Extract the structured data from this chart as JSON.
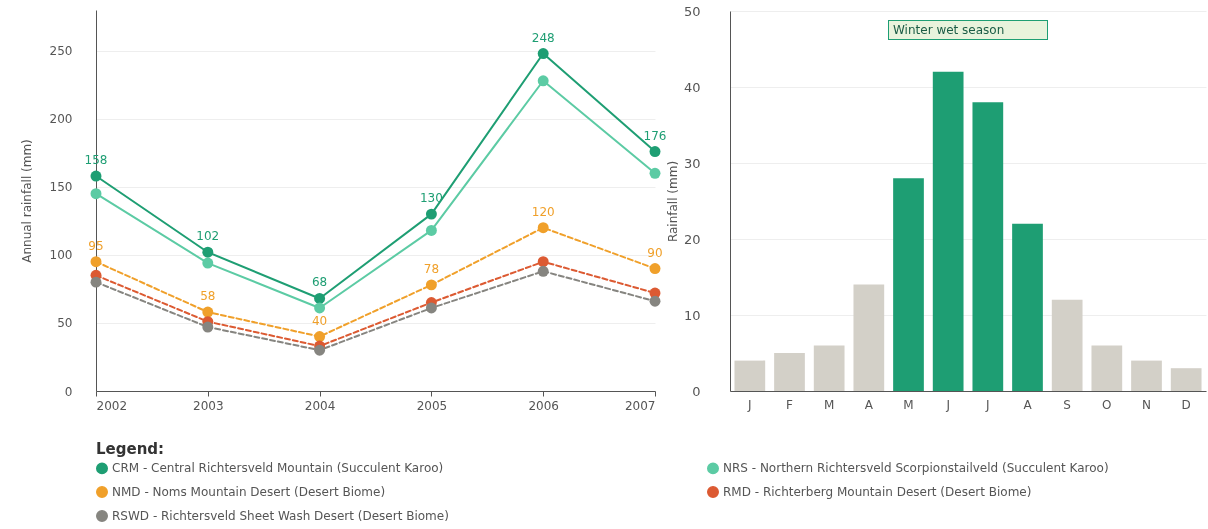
{
  "chart_data": [
    {
      "type": "line",
      "xlabel": null,
      "ylabel": "Annual rainfall (mm)",
      "legend_title": "Legend:",
      "x": [
        2002,
        2003,
        2004,
        2005,
        2006,
        2007
      ],
      "xlim": [
        2002,
        2007
      ],
      "xticks": [
        2002,
        2003,
        2004,
        2005,
        2006,
        2007
      ],
      "ylim": [
        0,
        280
      ],
      "yticks": [
        0,
        50,
        100,
        150,
        200,
        250
      ],
      "grid": "y",
      "legend": "bottom",
      "marker": "circle",
      "series": [
        {
          "name": "CRM - Central Richtersveld Mountain (Succulent Karoo)",
          "color": "#1e9e73",
          "line_style": "solid",
          "values": [
            158,
            102,
            68,
            130,
            248,
            176
          ],
          "value_labels": [
            "158",
            "102",
            "68",
            "130",
            "248",
            "176"
          ]
        },
        {
          "name": "NRS - Northern Richtersveld Scorpionstailveld (Succulent Karoo)",
          "color": "#5ccba4",
          "line_style": "solid",
          "values": [
            145,
            94,
            61,
            118,
            228,
            160
          ]
        },
        {
          "name": "NMD - Noms Mountain Desert (Desert Biome)",
          "color": "#f0a02a",
          "line_style": "dashed",
          "values": [
            95,
            58,
            40,
            78,
            120,
            90
          ],
          "value_labels": [
            "95",
            "58",
            "40",
            "78",
            "120",
            "90"
          ]
        },
        {
          "name": "RMD - Richterberg Mountain Desert (Desert Biome)",
          "color": "#dc5a32",
          "line_style": "dashed",
          "values": [
            85,
            51,
            33,
            65,
            95,
            72
          ]
        },
        {
          "name": "RSWD - Richtersveld Sheet Wash Desert (Desert Biome)",
          "color": "#868580",
          "line_style": "dashed",
          "values": [
            80,
            47,
            30,
            61,
            88,
            66
          ]
        }
      ]
    },
    {
      "type": "bar",
      "ylabel": "Rainfall (mm)",
      "categories": [
        "J",
        "F",
        "M",
        "A",
        "M",
        "J",
        "J",
        "A",
        "S",
        "O",
        "N",
        "D"
      ],
      "values": [
        4,
        5,
        6,
        14,
        28,
        42,
        38,
        22,
        12,
        6,
        4,
        3
      ],
      "colors": [
        "#d3d0c8",
        "#d3d0c8",
        "#d3d0c8",
        "#d3d0c8",
        "#1e9e73",
        "#1e9e73",
        "#1e9e73",
        "#1e9e73",
        "#d3d0c8",
        "#d3d0c8",
        "#d3d0c8",
        "#d3d0c8"
      ],
      "ylim": [
        0,
        50
      ],
      "yticks": [
        0,
        10,
        20,
        30,
        40,
        50
      ],
      "grid": "y",
      "annotations": [
        "Winter wet season"
      ]
    }
  ]
}
